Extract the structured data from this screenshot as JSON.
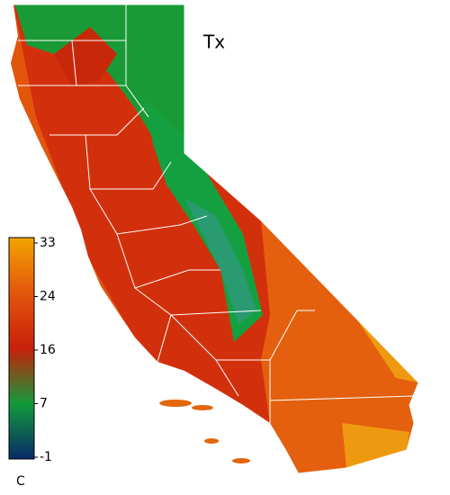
{
  "title": "Tx",
  "colorbar": {
    "ticks": [
      33,
      24,
      16,
      7,
      -1
    ],
    "unit": "C",
    "colors": [
      "#f2a400",
      "#e2560c",
      "#c8200a",
      "#129a3a",
      "#0a2a6a"
    ]
  }
}
